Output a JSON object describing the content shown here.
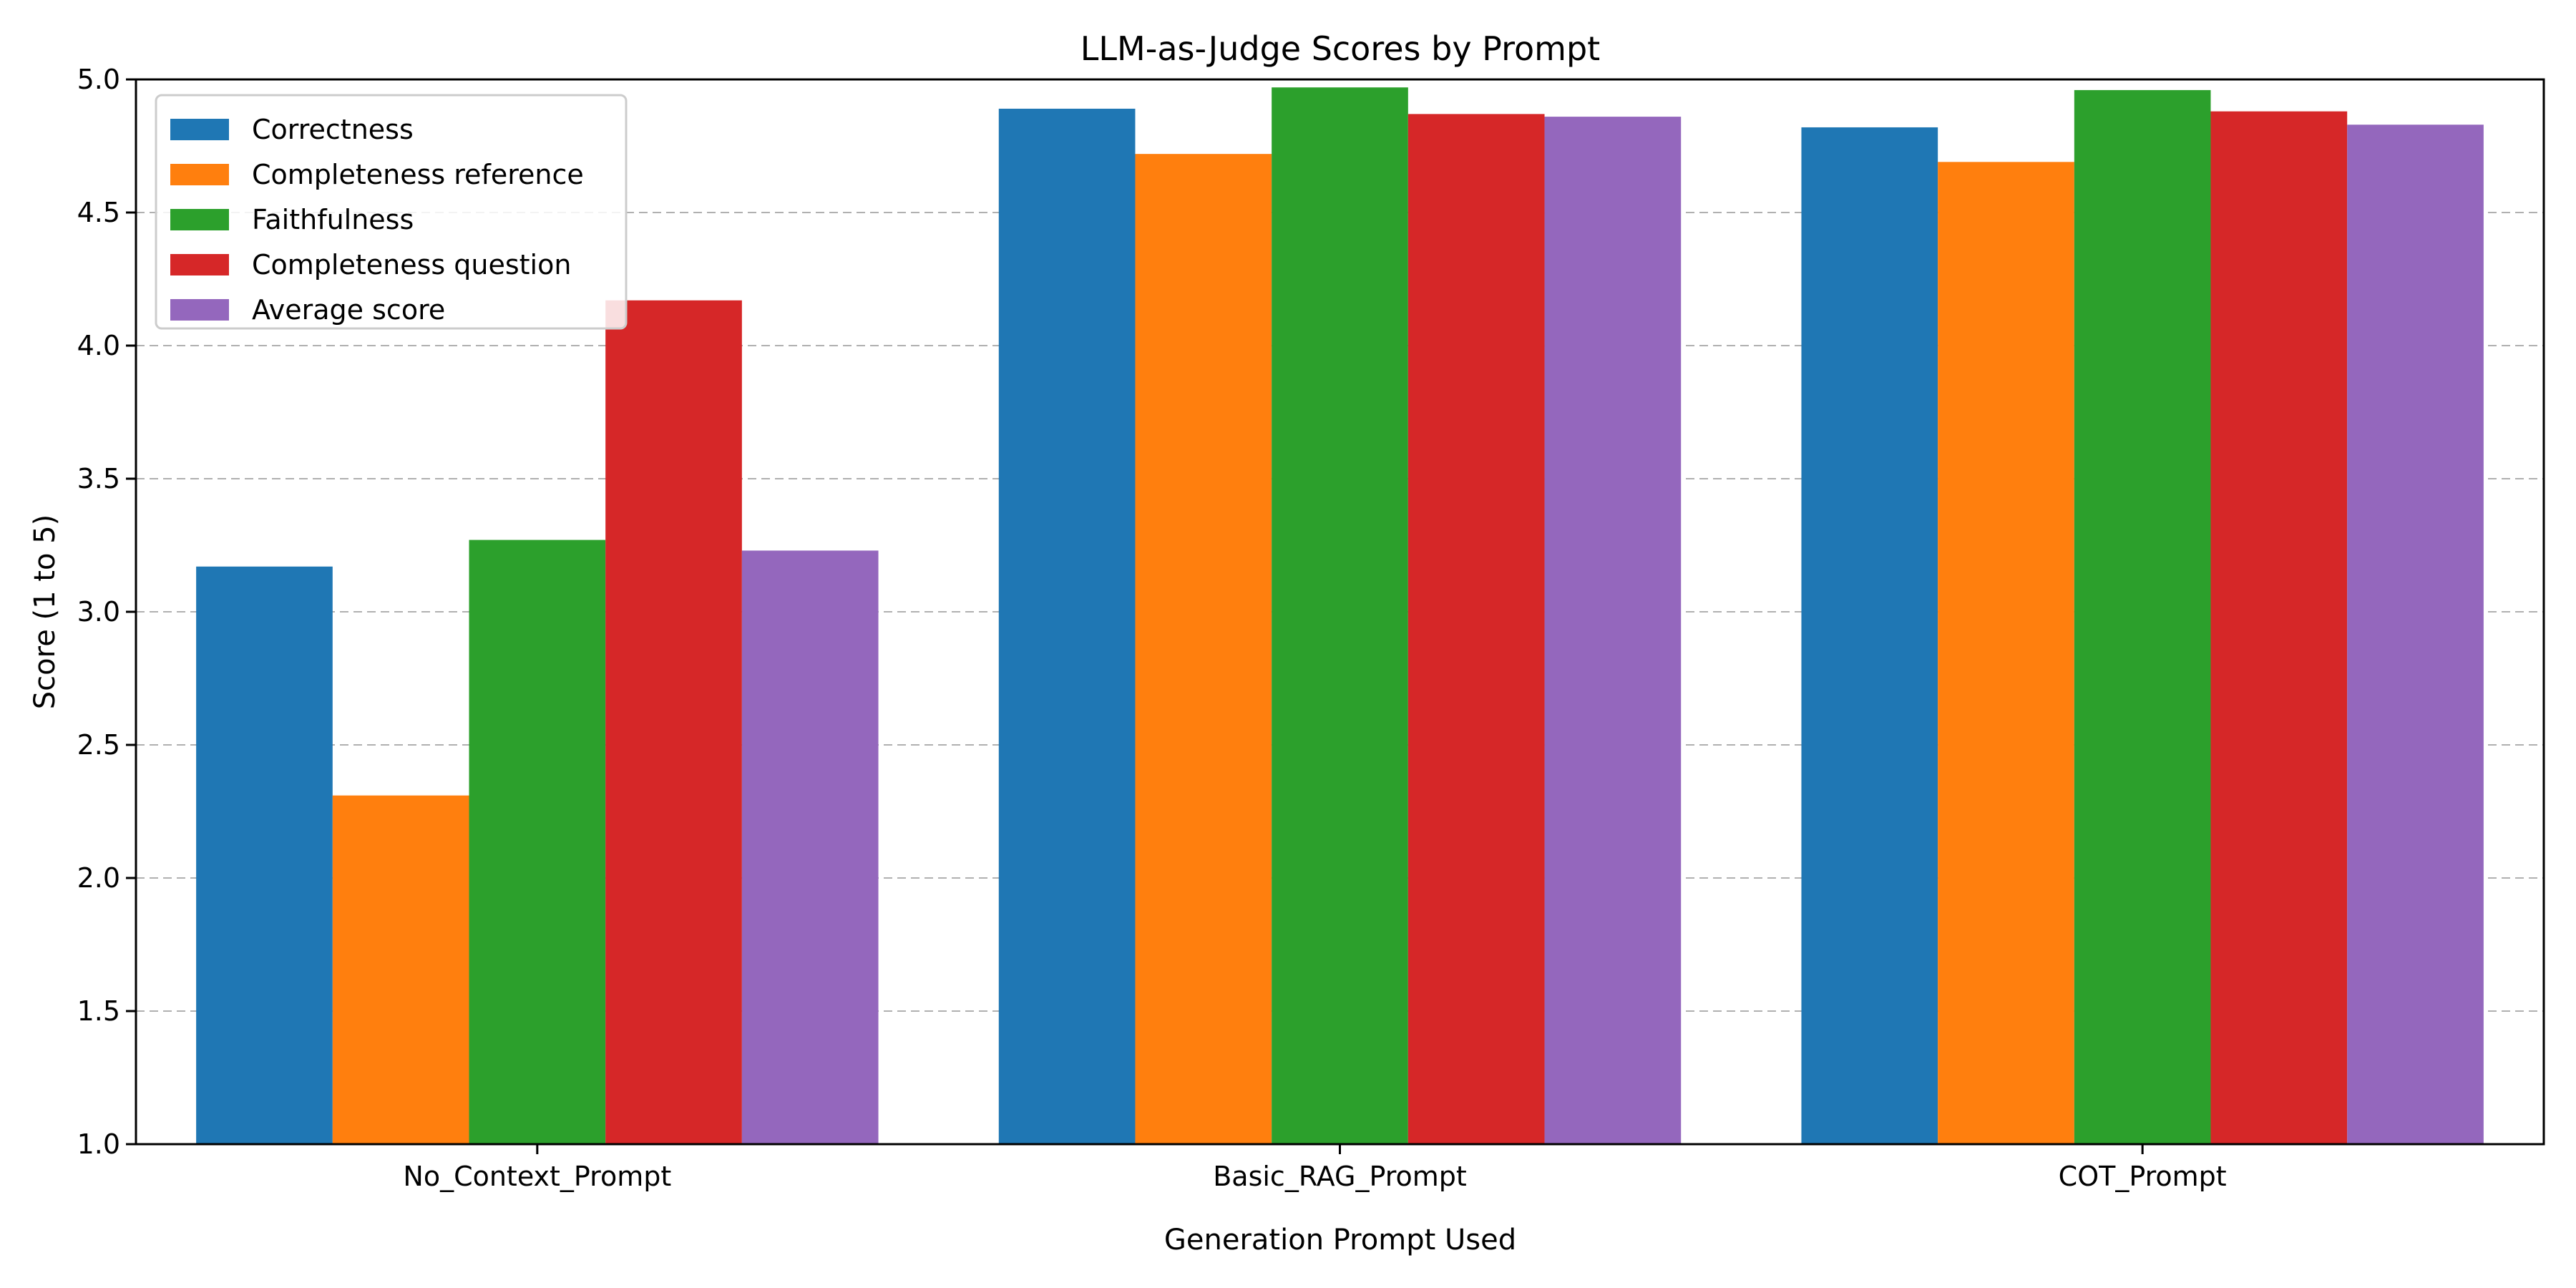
{
  "chart_data": {
    "type": "bar",
    "title": "LLM-as-Judge Scores by Prompt",
    "xlabel": "Generation Prompt Used",
    "ylabel": "Score (1 to 5)",
    "categories": [
      "No_Context_Prompt",
      "Basic_RAG_Prompt",
      "COT_Prompt"
    ],
    "ylim": [
      1.0,
      5.0
    ],
    "yticks": [
      "1.0",
      "1.5",
      "2.0",
      "2.5",
      "3.0",
      "3.5",
      "4.0",
      "4.5",
      "5.0"
    ],
    "grid": "horizontal dashed",
    "legend_position": "top-left",
    "series": [
      {
        "name": "Correctness",
        "color": "#1f77b4",
        "values": [
          3.17,
          4.89,
          4.82
        ]
      },
      {
        "name": "Completeness reference",
        "color": "#ff7f0e",
        "values": [
          2.31,
          4.72,
          4.69
        ]
      },
      {
        "name": "Faithfulness",
        "color": "#2ca02c",
        "values": [
          3.27,
          4.97,
          4.96
        ]
      },
      {
        "name": "Completeness question",
        "color": "#d62728",
        "values": [
          4.17,
          4.87,
          4.88
        ]
      },
      {
        "name": "Average score",
        "color": "#9467bd",
        "values": [
          3.23,
          4.86,
          4.83
        ]
      }
    ]
  }
}
